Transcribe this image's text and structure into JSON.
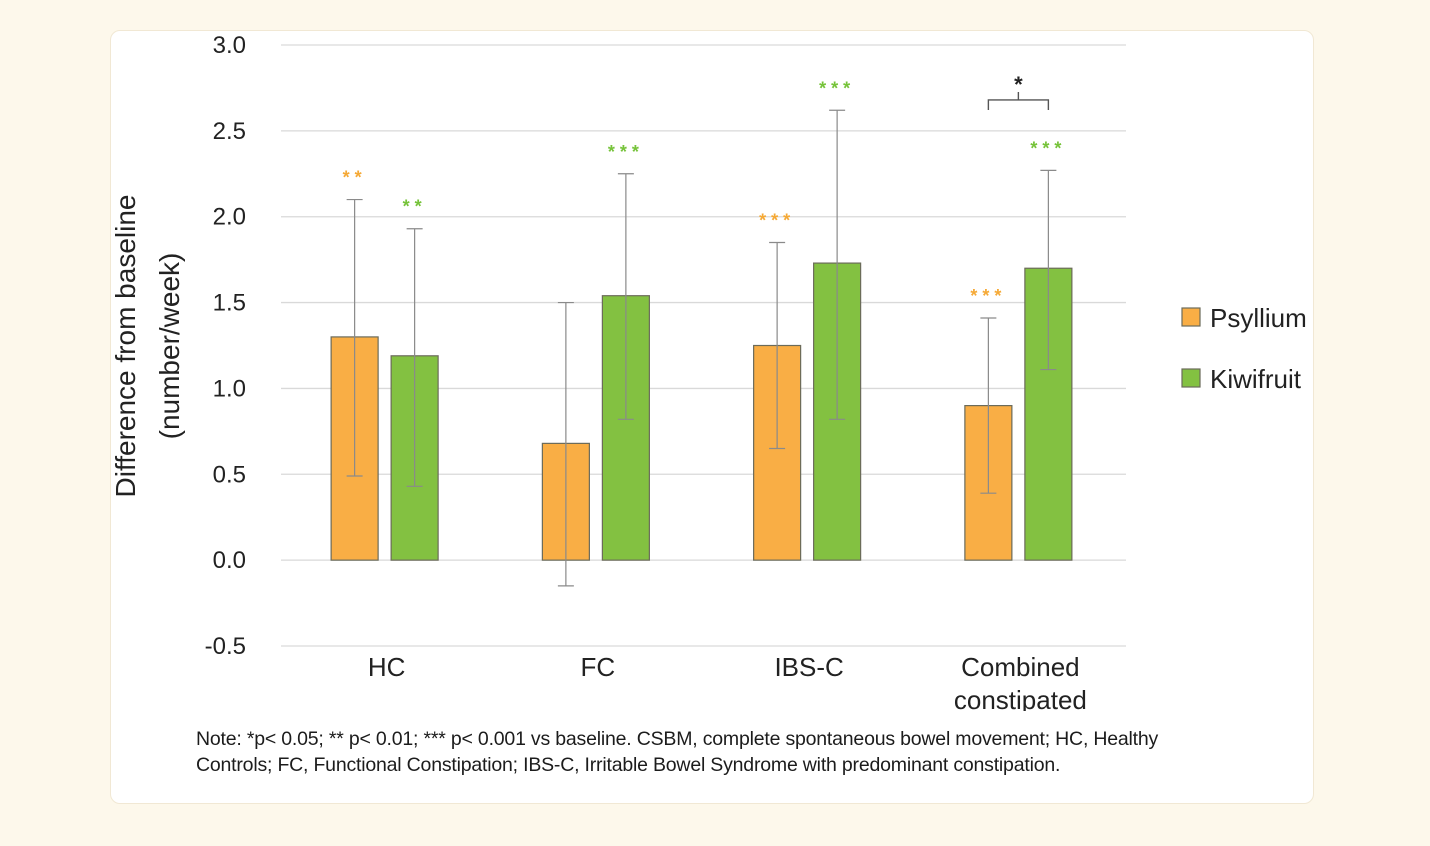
{
  "colors": {
    "psyllium": "#f9ae45",
    "kiwifruit": "#83c141",
    "psyllium_star": "#f5a936",
    "kiwifruit_star": "#76c33a",
    "grid": "#d9d9d9",
    "error_bar": "#8a8a8a"
  },
  "chart_data": {
    "type": "bar",
    "title": "",
    "xlabel": "",
    "ylabel": [
      "Difference from baseline",
      "(number/week)"
    ],
    "ylim": [
      -0.5,
      3.0
    ],
    "yticks": [
      "3.0",
      "2.5",
      "2.0",
      "1.5",
      "1.0",
      "0.5",
      "0.0",
      "-0.5"
    ],
    "ytick_values": [
      3.0,
      2.5,
      2.0,
      1.5,
      1.0,
      0.5,
      0.0,
      -0.5
    ],
    "grid": true,
    "legend_position": "right",
    "categories": [
      [
        "HC"
      ],
      [
        "FC"
      ],
      [
        "IBS-C"
      ],
      [
        "Combined",
        "constipated"
      ]
    ],
    "series": [
      {
        "name": "Psyllium",
        "values": [
          1.3,
          0.68,
          1.25,
          0.9
        ],
        "error_low": [
          0.49,
          -0.15,
          0.65,
          0.39
        ],
        "error_high": [
          2.1,
          1.5,
          1.85,
          1.41
        ],
        "significance": [
          "**",
          "",
          "***",
          "***"
        ]
      },
      {
        "name": "Kiwifruit",
        "values": [
          1.19,
          1.54,
          1.73,
          1.7
        ],
        "error_low": [
          0.43,
          0.82,
          0.82,
          1.11
        ],
        "error_high": [
          1.93,
          2.25,
          2.62,
          2.27
        ],
        "significance": [
          "**",
          "***",
          "***",
          "***"
        ]
      }
    ],
    "comparison_annotation": {
      "category_index": 3,
      "label": "*"
    }
  },
  "note": {
    "text": "Note: *p< 0.05; ** p< 0.01; *** p< 0.001 vs baseline. CSBM, complete spontaneous bowel movement; HC, Healthy Controls; FC, Functional Constipation; IBS-C, Irritable Bowel Syndrome with predominant constipation."
  }
}
